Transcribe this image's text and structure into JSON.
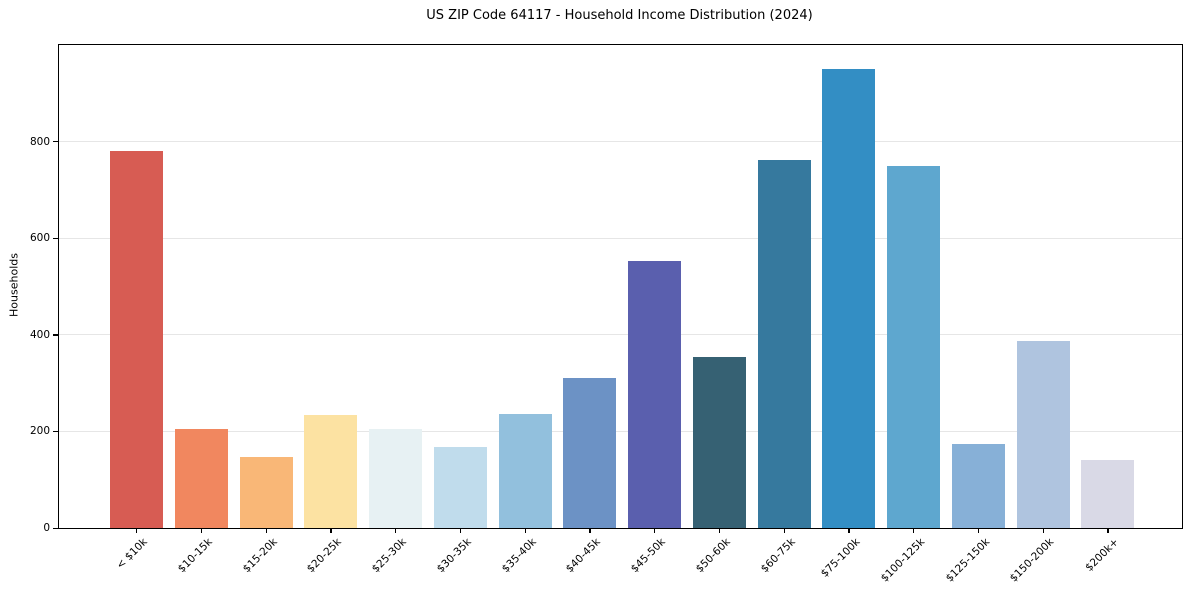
{
  "figure": {
    "title": "US ZIP Code 64117 - Household Income Distribution (2024)"
  },
  "chart_data": {
    "type": "bar",
    "title": "US ZIP Code 64117 - Household Income Distribution (2024)",
    "xlabel": "",
    "ylabel": "Households",
    "ylim": [
      0,
      1000
    ],
    "yticks": [
      0,
      200,
      400,
      600,
      800
    ],
    "grid": true,
    "legend": false,
    "categories": [
      "< $10k",
      "$10-15k",
      "$15-20k",
      "$20-25k",
      "$25-30k",
      "$30-35k",
      "$35-40k",
      "$40-45k",
      "$45-50k",
      "$50-60k",
      "$60-75k",
      "$75-100k",
      "$100-125k",
      "$125-150k",
      "$150-200k",
      "$200k+"
    ],
    "values": [
      780,
      205,
      148,
      235,
      205,
      168,
      237,
      311,
      553,
      355,
      762,
      950,
      750,
      173,
      388,
      140
    ],
    "bar_colors": [
      "#d75c53",
      "#f1875f",
      "#f9b777",
      "#fce2a2",
      "#e7f1f3",
      "#c0dcec",
      "#92c0dd",
      "#6c92c5",
      "#5a5fae",
      "#366173",
      "#36799e",
      "#338ec4",
      "#5ea7cf",
      "#87b0d7",
      "#afc4df",
      "#d9d9e6"
    ]
  },
  "colors": {
    "background": "#ffffff",
    "gridline": "#e6e6e6",
    "spine": "#000000",
    "text": "#000000"
  }
}
